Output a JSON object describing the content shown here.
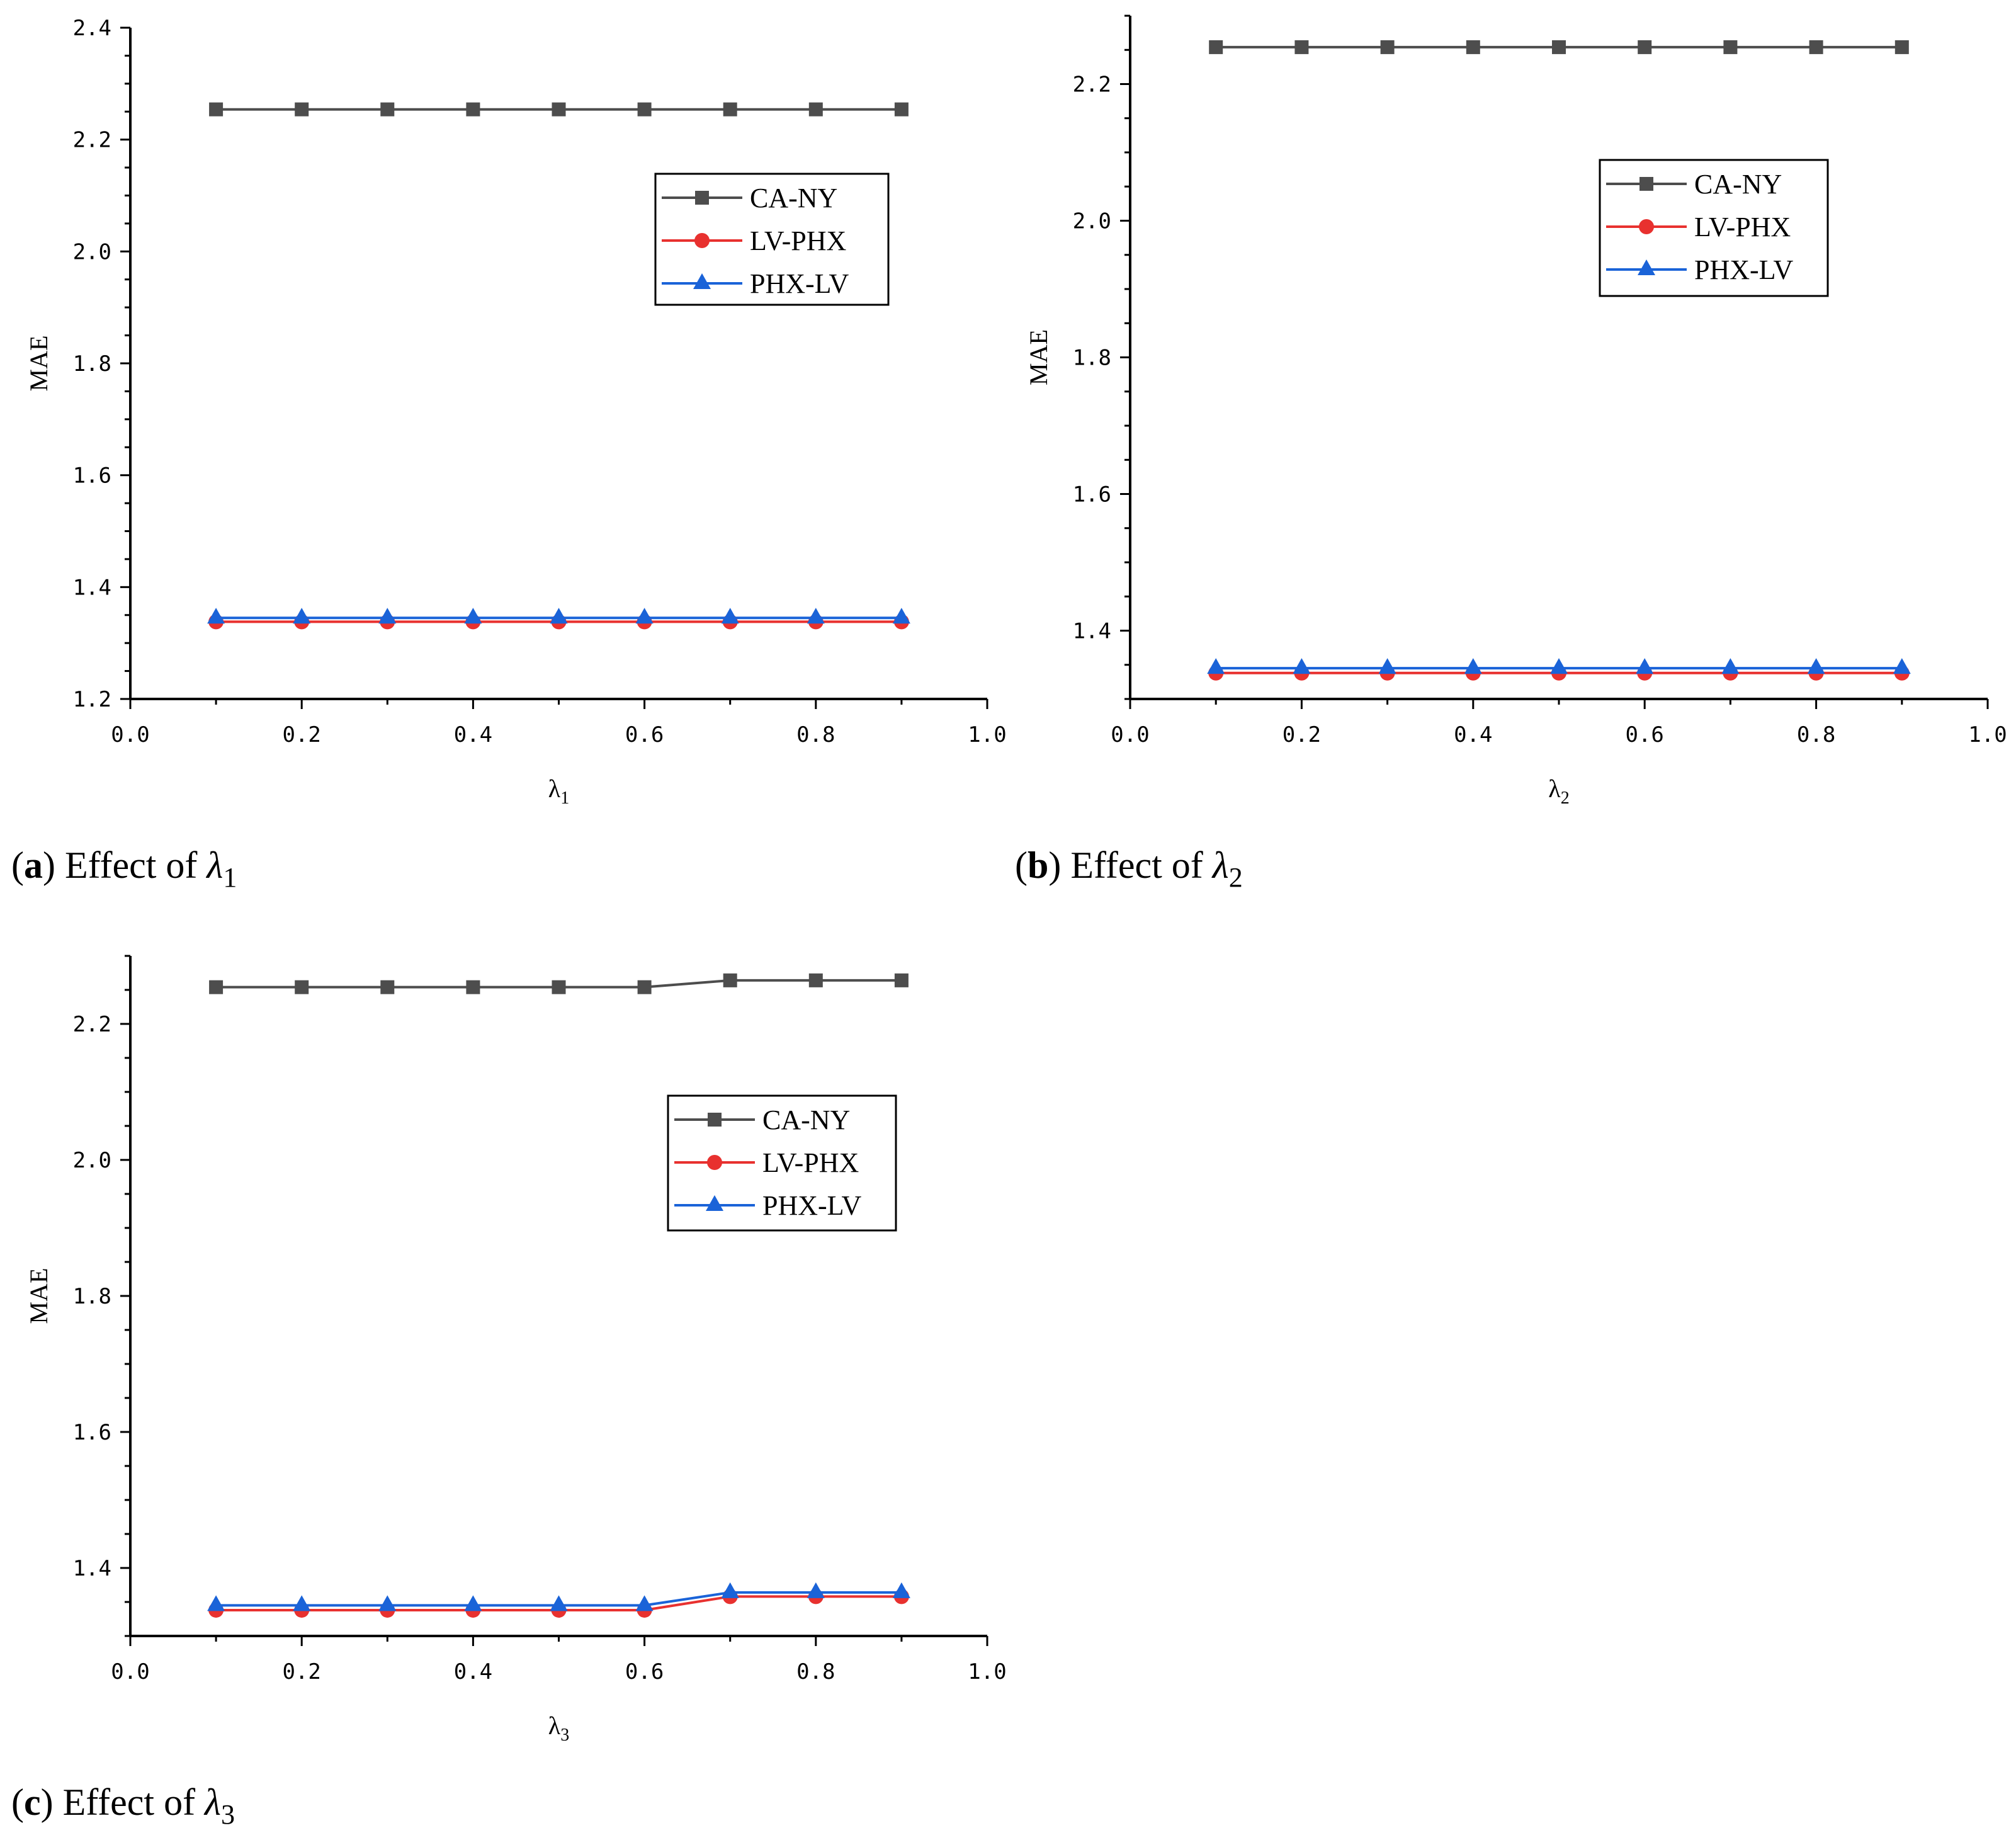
{
  "chart_data": [
    {
      "type": "line",
      "panel": "a",
      "caption_letter": "a",
      "caption_text": "Effect of",
      "caption_symbol": "λ",
      "caption_sub": "1",
      "xlabel_symbol": "λ",
      "xlabel_sub": "1",
      "ylabel": "MAE",
      "xlim": [
        0.0,
        1.0
      ],
      "ylim": [
        1.2,
        2.4
      ],
      "xticks": [
        "0.0",
        "0.2",
        "0.4",
        "0.6",
        "0.8",
        "1.0"
      ],
      "yticks": [
        "1.2",
        "1.4",
        "1.6",
        "1.8",
        "2.0",
        "2.2",
        "2.4"
      ],
      "x": [
        0.1,
        0.2,
        0.3,
        0.4,
        0.5,
        0.6,
        0.7,
        0.8,
        0.9
      ],
      "legend_position": "top-right",
      "series": [
        {
          "name": "CA-NY",
          "color": "#4d4d4d",
          "marker": "square",
          "values": [
            2.254,
            2.254,
            2.254,
            2.254,
            2.254,
            2.254,
            2.254,
            2.254,
            2.254
          ]
        },
        {
          "name": "LV-PHX",
          "color": "#e8312f",
          "marker": "circle",
          "values": [
            1.338,
            1.338,
            1.338,
            1.338,
            1.338,
            1.338,
            1.338,
            1.338,
            1.338
          ]
        },
        {
          "name": "PHX-LV",
          "color": "#1a63d8",
          "marker": "triangle",
          "values": [
            1.345,
            1.345,
            1.345,
            1.345,
            1.345,
            1.345,
            1.345,
            1.345,
            1.345
          ]
        }
      ]
    },
    {
      "type": "line",
      "panel": "b",
      "caption_letter": "b",
      "caption_text": "Effect of",
      "caption_symbol": "λ",
      "caption_sub": "2",
      "xlabel_symbol": "λ",
      "xlabel_sub": "2",
      "ylabel": "MAE",
      "xlim": [
        0.0,
        1.0
      ],
      "ylim": [
        1.3,
        2.3
      ],
      "xticks": [
        "0.0",
        "0.2",
        "0.4",
        "0.6",
        "0.8",
        "1.0"
      ],
      "yticks": [
        "1.4",
        "1.6",
        "1.8",
        "2.0",
        "2.2"
      ],
      "x": [
        0.1,
        0.2,
        0.3,
        0.4,
        0.5,
        0.6,
        0.7,
        0.8,
        0.9
      ],
      "legend_position": "top-right",
      "series": [
        {
          "name": "CA-NY",
          "color": "#4d4d4d",
          "marker": "square",
          "values": [
            2.254,
            2.254,
            2.254,
            2.254,
            2.254,
            2.254,
            2.254,
            2.254,
            2.254
          ]
        },
        {
          "name": "LV-PHX",
          "color": "#e8312f",
          "marker": "circle",
          "values": [
            1.338,
            1.338,
            1.338,
            1.338,
            1.338,
            1.338,
            1.338,
            1.338,
            1.338
          ]
        },
        {
          "name": "PHX-LV",
          "color": "#1a63d8",
          "marker": "triangle",
          "values": [
            1.345,
            1.345,
            1.345,
            1.345,
            1.345,
            1.345,
            1.345,
            1.345,
            1.345
          ]
        }
      ]
    },
    {
      "type": "line",
      "panel": "c",
      "caption_letter": "c",
      "caption_text": "Effect of",
      "caption_symbol": "λ",
      "caption_sub": "3",
      "xlabel_symbol": "λ",
      "xlabel_sub": "3",
      "ylabel": "MAE",
      "xlim": [
        0.0,
        1.0
      ],
      "ylim": [
        1.3,
        2.3
      ],
      "xticks": [
        "0.0",
        "0.2",
        "0.4",
        "0.6",
        "0.8",
        "1.0"
      ],
      "yticks": [
        "1.4",
        "1.6",
        "1.8",
        "2.0",
        "2.2"
      ],
      "x": [
        0.1,
        0.2,
        0.3,
        0.4,
        0.5,
        0.6,
        0.7,
        0.8,
        0.9
      ],
      "legend_position": "top-right",
      "series": [
        {
          "name": "CA-NY",
          "color": "#4d4d4d",
          "marker": "square",
          "values": [
            2.254,
            2.254,
            2.254,
            2.254,
            2.254,
            2.254,
            2.264,
            2.264,
            2.264
          ]
        },
        {
          "name": "LV-PHX",
          "color": "#e8312f",
          "marker": "circle",
          "values": [
            1.338,
            1.338,
            1.338,
            1.338,
            1.338,
            1.338,
            1.358,
            1.358,
            1.358
          ]
        },
        {
          "name": "PHX-LV",
          "color": "#1a63d8",
          "marker": "triangle",
          "values": [
            1.345,
            1.345,
            1.345,
            1.345,
            1.345,
            1.345,
            1.364,
            1.364,
            1.364
          ]
        }
      ]
    }
  ]
}
